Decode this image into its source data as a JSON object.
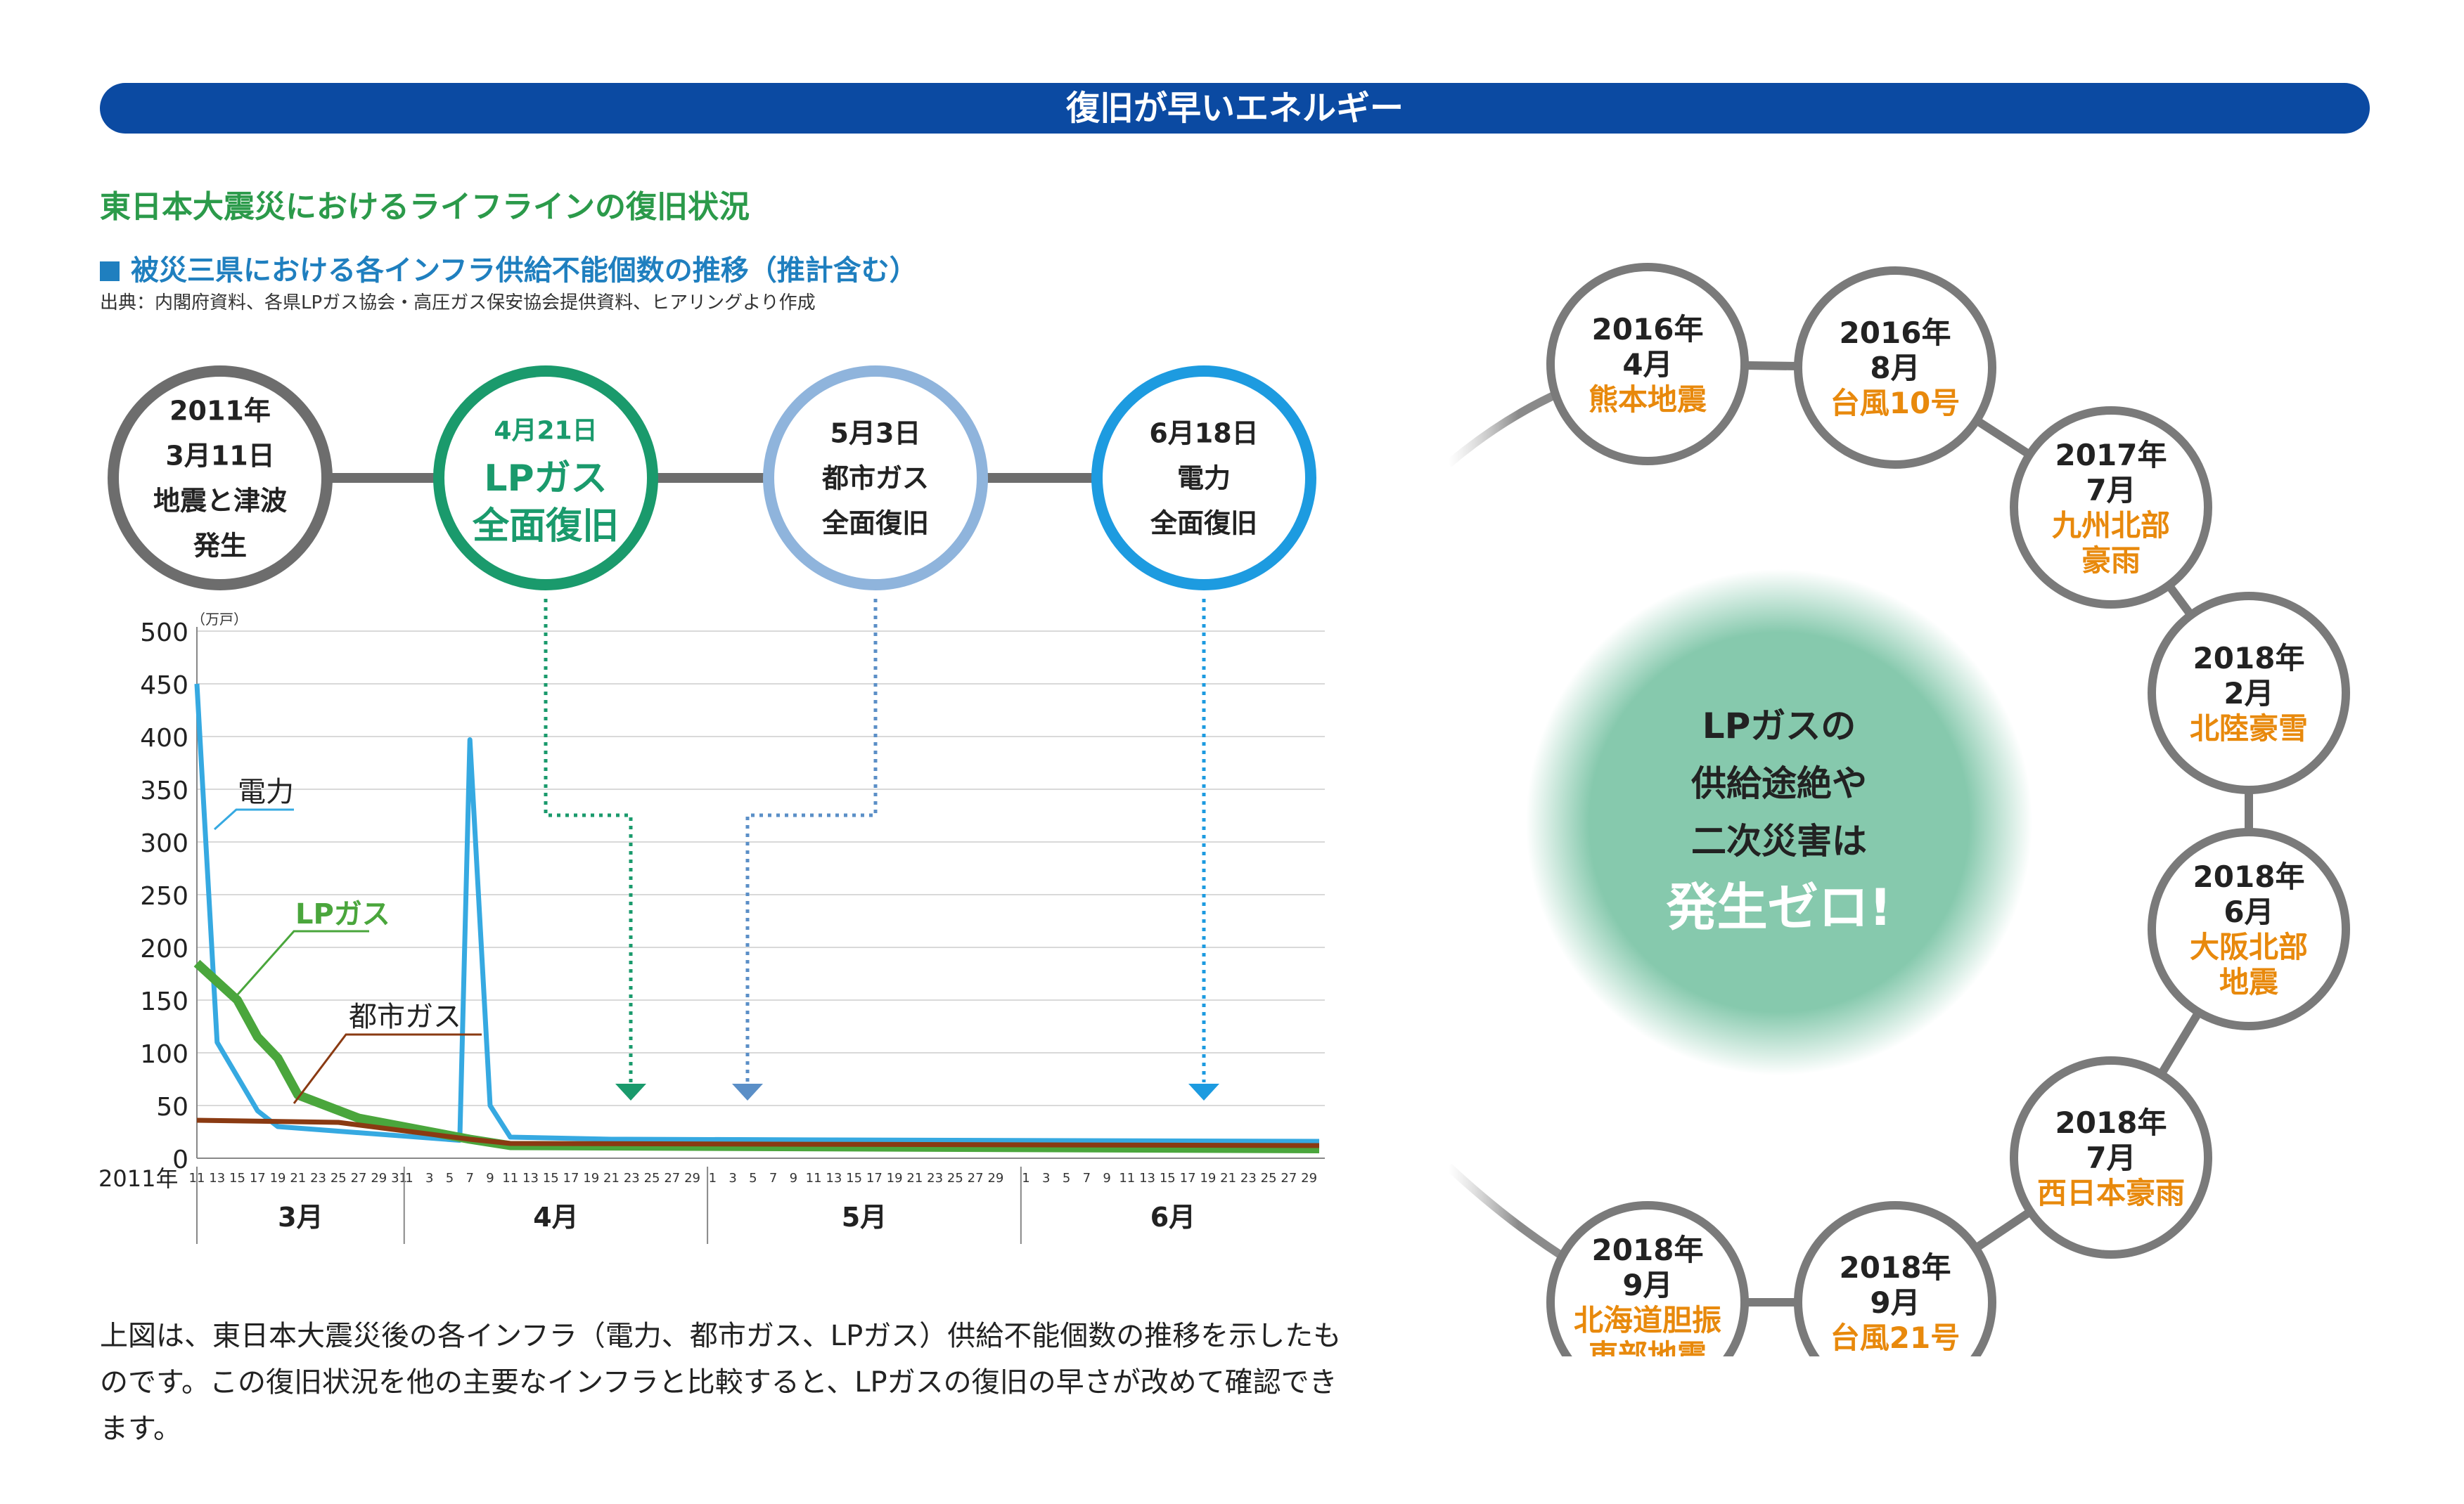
{
  "banner": "復旧が早いエネルギー",
  "heading": "東日本大震災におけるライフラインの復旧状況",
  "subheading": "被災三県における各インフラ供給不能個数の推移（推計含む）",
  "source": "出典：内閣府資料、各県LPガス協会・高圧ガス保安協会提供資料、ヒアリングより作成",
  "timeline": [
    {
      "lines": [
        "2011年",
        "3月11日",
        "地震と津波",
        "発生"
      ],
      "color": "#6d6d6d"
    },
    {
      "lines": [
        "4月21日",
        "LPガス",
        "全面復旧"
      ],
      "color": "#1a9a6c"
    },
    {
      "lines": [
        "5月3日",
        "都市ガス",
        "全面復旧"
      ],
      "color": "#8fb4dc"
    },
    {
      "lines": [
        "6月18日",
        "電力",
        "全面復旧"
      ],
      "color": "#1d9be0"
    }
  ],
  "chart_data": {
    "type": "line",
    "unit": "（万戸）",
    "x_prefix": "2011年",
    "ylim": [
      0,
      500
    ],
    "yticks": [
      "500",
      "450",
      "400",
      "350",
      "300",
      "250",
      "200",
      "150",
      "100",
      "50",
      "0"
    ],
    "months": [
      {
        "name": "3月",
        "ticks": [
          "11",
          "13",
          "15",
          "17",
          "19",
          "21",
          "23",
          "25",
          "27",
          "29",
          "31"
        ]
      },
      {
        "name": "4月",
        "ticks": [
          "1",
          "3",
          "5",
          "7",
          "9",
          "11",
          "13",
          "15",
          "17",
          "19",
          "21",
          "23",
          "25",
          "27",
          "29"
        ]
      },
      {
        "name": "5月",
        "ticks": [
          "1",
          "3",
          "5",
          "7",
          "9",
          "11",
          "13",
          "15",
          "17",
          "19",
          "21",
          "23",
          "25",
          "27",
          "29"
        ]
      },
      {
        "name": "6月",
        "ticks": [
          "1",
          "3",
          "5",
          "7",
          "9",
          "11",
          "13",
          "15",
          "17",
          "19",
          "21",
          "23",
          "25",
          "27",
          "29"
        ]
      }
    ],
    "series": [
      {
        "name": "電力",
        "color": "#36a9e1",
        "points": [
          [
            "3-11",
            450
          ],
          [
            "3-13",
            110
          ],
          [
            "3-17",
            45
          ],
          [
            "3-19",
            30
          ],
          [
            "4-6",
            17
          ],
          [
            "4-7",
            397
          ],
          [
            "4-9",
            50
          ],
          [
            "4-11",
            20
          ],
          [
            "4-21",
            18
          ],
          [
            "6-30",
            16
          ]
        ]
      },
      {
        "name": "LPガス",
        "color": "#4aa63c",
        "points": [
          [
            "3-11",
            185
          ],
          [
            "3-15",
            150
          ],
          [
            "3-17",
            115
          ],
          [
            "3-19",
            95
          ],
          [
            "3-21",
            60
          ],
          [
            "3-27",
            38
          ],
          [
            "4-7",
            18
          ],
          [
            "4-11",
            12
          ],
          [
            "6-30",
            9
          ]
        ]
      },
      {
        "name": "都市ガス",
        "color": "#8a3a12",
        "points": [
          [
            "3-11",
            36
          ],
          [
            "3-25",
            34
          ],
          [
            "4-7",
            18
          ],
          [
            "4-11",
            14
          ],
          [
            "6-30",
            12
          ]
        ]
      }
    ]
  },
  "ring": {
    "center": [
      "LPガスの",
      "供給途絶や",
      "二次災害は",
      "発生ゼロ!"
    ],
    "events": [
      {
        "year": "2016年",
        "month": "4月",
        "name": [
          "熊本地震"
        ]
      },
      {
        "year": "2016年",
        "month": "8月",
        "name": [
          "台風10号"
        ]
      },
      {
        "year": "2017年",
        "month": "7月",
        "name": [
          "九州北部",
          "豪雨"
        ]
      },
      {
        "year": "2018年",
        "month": "2月",
        "name": [
          "北陸豪雪"
        ]
      },
      {
        "year": "2018年",
        "month": "6月",
        "name": [
          "大阪北部",
          "地震"
        ]
      },
      {
        "year": "2018年",
        "month": "7月",
        "name": [
          "西日本豪雨"
        ]
      },
      {
        "year": "2018年",
        "month": "9月",
        "name": [
          "台風21号"
        ]
      },
      {
        "year": "2018年",
        "month": "9月",
        "name": [
          "北海道胆振",
          "東部地震"
        ]
      }
    ],
    "event_color": "#e8890c"
  },
  "paragraph": "上図は、東日本大震災後の各インフラ（電力、都市ガス、LPガス）供給不能個数の推移を示したものです。この復旧状況を他の主要なインフラと比較すると、LPガスの復旧の早さが改めて確認できます。"
}
